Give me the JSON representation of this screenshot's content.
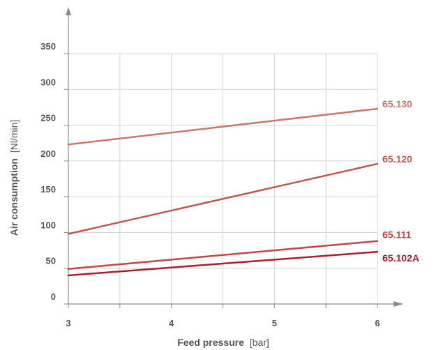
{
  "chart_data": {
    "type": "line",
    "xlabel": {
      "bold": "Feed pressure",
      "unit": "[bar]"
    },
    "ylabel": {
      "bold": "Air consumption",
      "unit": "[Nl/min]"
    },
    "x_ticks": [
      3,
      4,
      5,
      6
    ],
    "y_ticks": [
      0,
      50,
      100,
      150,
      200,
      250,
      300,
      350
    ],
    "xlim": [
      3,
      6
    ],
    "ylim": [
      0,
      350
    ],
    "grid": true,
    "series": [
      {
        "name": "65.130",
        "color": "#c8776a",
        "x": [
          3,
          6
        ],
        "y": [
          223,
          273
        ]
      },
      {
        "name": "65.120",
        "color": "#bc5a52",
        "x": [
          3,
          6
        ],
        "y": [
          98,
          196
        ]
      },
      {
        "name": "65.111",
        "color": "#bc4a48",
        "x": [
          3,
          6
        ],
        "y": [
          49,
          88
        ]
      },
      {
        "name": "65.102A",
        "color": "#a8202e",
        "x": [
          3,
          6
        ],
        "y": [
          40,
          73
        ]
      }
    ]
  }
}
